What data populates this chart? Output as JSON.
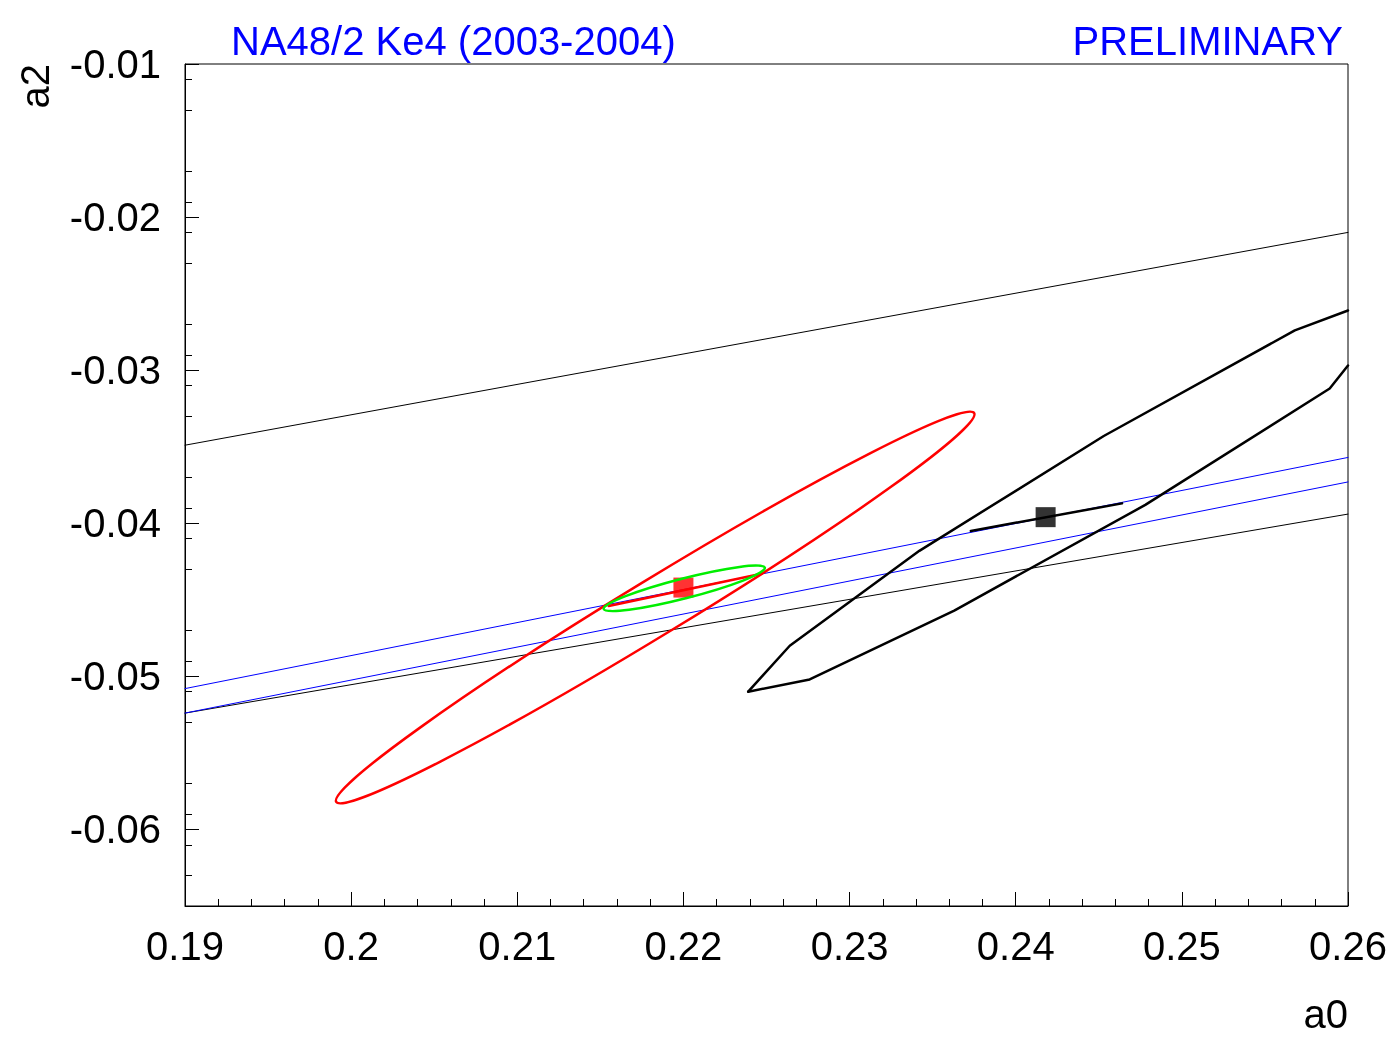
{
  "chart_data": {
    "type": "line",
    "title": "NA48/2 Ke4 (2003-2004)",
    "annotations": [
      "PRELIMINARY"
    ],
    "xlabel": "a0",
    "ylabel": "a2",
    "xlim": [
      0.19,
      0.26
    ],
    "xticks": [
      0.19,
      0.2,
      0.21,
      0.22,
      0.23,
      0.24,
      0.25,
      0.26
    ],
    "ylim": [
      -0.065,
      -0.01
    ],
    "yticks": [
      -0.06,
      -0.05,
      -0.04,
      -0.03,
      -0.02,
      -0.01
    ],
    "grid": false,
    "marker": "none",
    "line_style": "solid",
    "series": [
      {
        "type": "line",
        "color": "#000000",
        "x": [
          0.19,
          0.26
        ],
        "values": [
          -0.0349,
          -0.021
        ]
      },
      {
        "type": "line",
        "color": "#000000",
        "x": [
          0.19,
          0.26
        ],
        "values": [
          -0.0524,
          -0.0394
        ]
      },
      {
        "type": "line",
        "color": "#0000ff",
        "x": [
          0.19,
          0.26
        ],
        "values": [
          -0.0508,
          -0.0357
        ]
      },
      {
        "type": "line",
        "color": "#0000ff",
        "x": [
          0.19,
          0.26
        ],
        "values": [
          -0.0524,
          -0.0373
        ]
      },
      {
        "type": "line",
        "color": "#000000",
        "x": [
          0.2239,
          0.2264,
          0.2342,
          0.2453,
          0.2568,
          0.26
        ],
        "values": [
          -0.051,
          -0.048,
          -0.0418,
          -0.0343,
          -0.0274,
          -0.0261
        ]
      },
      {
        "type": "line",
        "color": "#000000",
        "x": [
          0.2239,
          0.2276,
          0.2363,
          0.2478,
          0.2589,
          0.26
        ],
        "values": [
          -0.051,
          -0.0502,
          -0.0457,
          -0.0388,
          -0.0312,
          -0.0297
        ]
      },
      {
        "type": "line",
        "color": "#ff0000",
        "x": [
          0.2155,
          0.2247
        ],
        "values": [
          -0.0454,
          -0.0433
        ]
      },
      {
        "type": "line",
        "color": "#000000",
        "x": [
          0.2373,
          0.2464
        ],
        "values": [
          -0.0405,
          -0.0387
        ]
      },
      {
        "type": "scatter",
        "marker": "square",
        "color": "#ff0000",
        "x": [
          0.22
        ],
        "values": [
          -0.0442
        ]
      },
      {
        "type": "scatter",
        "marker": "square",
        "color": "#000000",
        "x": [
          0.2418
        ],
        "values": [
          -0.0396
        ]
      }
    ]
  }
}
